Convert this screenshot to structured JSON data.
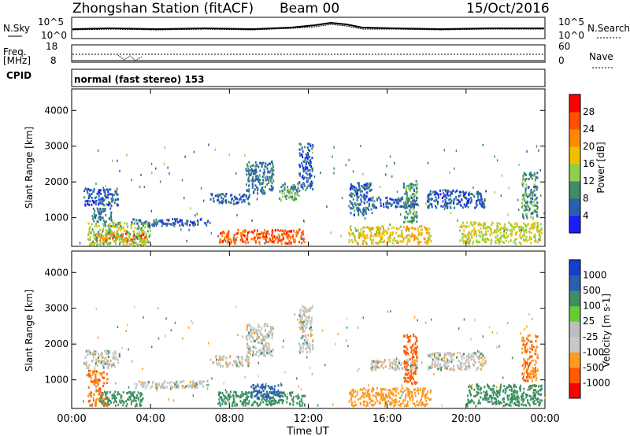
{
  "header": {
    "station": "Zhongshan Station (fitACF)",
    "beam": "Beam 00",
    "date": "15/Oct/2016"
  },
  "noise_panel": {
    "left_label": "N.Sky",
    "left_ticks": [
      "10^5",
      "10^0"
    ],
    "right_label": "N.Search",
    "right_ticks": [
      "10^5",
      "10^0"
    ]
  },
  "freq_panel": {
    "left_label_top": "Freq.",
    "left_label_unit": "[MHz]",
    "left_ticks": [
      "18",
      "8"
    ],
    "right_label": "Nave",
    "right_ticks": [
      "60",
      "0"
    ]
  },
  "cpid_panel": {
    "label": "CPID",
    "text": "normal (fast stereo) 153"
  },
  "colors": {
    "power": [
      "#1b1bff",
      "#2a5fb0",
      "#3e8c6a",
      "#8fd04a",
      "#f0c000",
      "#ff8a00",
      "#ff5000",
      "#ff0000"
    ],
    "velocity": [
      "#ff0000",
      "#ff5a00",
      "#ff9a20",
      "#c8c8c8",
      "#bebebe",
      "#66cc33",
      "#3d8f63",
      "#2a5fb0",
      "#1440d0"
    ]
  },
  "chart_data": [
    {
      "type": "heatmap",
      "name": "Power",
      "ylabel": "Slant Range [km]",
      "yticks": [
        1000,
        2000,
        3000,
        4000
      ],
      "ylim": [
        200,
        4600
      ],
      "xlim": [
        0,
        24
      ],
      "colorbar_label": "Power [dB]",
      "colorbar_ticks": [
        4,
        8,
        12,
        16,
        20,
        24,
        28
      ],
      "colorbar_range": [
        0,
        32
      ],
      "regions": [
        {
          "x": [
            0.6,
            2.4
          ],
          "y": [
            1350,
            1850
          ],
          "v": 6
        },
        {
          "x": [
            1.0,
            2.0
          ],
          "y": [
            900,
            1300
          ],
          "v": 8
        },
        {
          "x": [
            1.2,
            3.8
          ],
          "y": [
            350,
            600
          ],
          "v": 26
        },
        {
          "x": [
            0.8,
            4.0
          ],
          "y": [
            250,
            900
          ],
          "v": 14
        },
        {
          "x": [
            3.0,
            7.0
          ],
          "y": [
            800,
            1000
          ],
          "v": 6
        },
        {
          "x": [
            7.0,
            9.0
          ],
          "y": [
            1400,
            1700
          ],
          "v": 7
        },
        {
          "x": [
            8.8,
            10.2
          ],
          "y": [
            1700,
            2600
          ],
          "v": 8
        },
        {
          "x": [
            7.4,
            11.8
          ],
          "y": [
            300,
            700
          ],
          "v": 25
        },
        {
          "x": [
            10.5,
            11.5
          ],
          "y": [
            1500,
            2000
          ],
          "v": 11
        },
        {
          "x": [
            11.5,
            12.2
          ],
          "y": [
            1800,
            3100
          ],
          "v": 6
        },
        {
          "x": [
            14.0,
            15.2
          ],
          "y": [
            1100,
            2000
          ],
          "v": 7
        },
        {
          "x": [
            15.0,
            17.5
          ],
          "y": [
            1300,
            1600
          ],
          "v": 6
        },
        {
          "x": [
            14.0,
            18.2
          ],
          "y": [
            300,
            800
          ],
          "v": 18
        },
        {
          "x": [
            16.8,
            17.5
          ],
          "y": [
            900,
            2100
          ],
          "v": 11
        },
        {
          "x": [
            18.0,
            21.0
          ],
          "y": [
            1300,
            1800
          ],
          "v": 6
        },
        {
          "x": [
            19.6,
            23.8
          ],
          "y": [
            300,
            900
          ],
          "v": 16
        },
        {
          "x": [
            22.8,
            23.6
          ],
          "y": [
            1000,
            2300
          ],
          "v": 10
        }
      ]
    },
    {
      "type": "heatmap",
      "name": "Velocity",
      "ylabel": "Slant Range [km]",
      "yticks": [
        1000,
        2000,
        3000,
        4000
      ],
      "ylim": [
        200,
        4600
      ],
      "xlim": [
        0,
        24
      ],
      "xlabel": "Time UT",
      "xticks": [
        "00:00",
        "04:00",
        "08:00",
        "12:00",
        "16:00",
        "20:00",
        "00:00"
      ],
      "colorbar_label": "Velocity [m s-1]",
      "colorbar_ticks": [
        "-1000",
        "-500",
        "-100",
        "-25",
        "25",
        "100",
        "500",
        "1000"
      ],
      "regions": [
        {
          "x": [
            0.6,
            2.4
          ],
          "y": [
            1350,
            1850
          ],
          "v": 0
        },
        {
          "x": [
            0.8,
            1.8
          ],
          "y": [
            300,
            1300
          ],
          "v": -300
        },
        {
          "x": [
            1.4,
            3.6
          ],
          "y": [
            300,
            700
          ],
          "v": 200
        },
        {
          "x": [
            3.0,
            7.0
          ],
          "y": [
            800,
            1000
          ],
          "v": 0
        },
        {
          "x": [
            7.0,
            9.0
          ],
          "y": [
            1400,
            1700
          ],
          "v": 0
        },
        {
          "x": [
            8.8,
            10.2
          ],
          "y": [
            1700,
            2600
          ],
          "v": 0
        },
        {
          "x": [
            7.4,
            11.8
          ],
          "y": [
            300,
            700
          ],
          "v": 150
        },
        {
          "x": [
            9.0,
            10.6
          ],
          "y": [
            500,
            900
          ],
          "v": 600
        },
        {
          "x": [
            11.5,
            12.2
          ],
          "y": [
            1800,
            3100
          ],
          "v": 0
        },
        {
          "x": [
            14.0,
            18.2
          ],
          "y": [
            300,
            800
          ],
          "v": -200
        },
        {
          "x": [
            16.8,
            17.5
          ],
          "y": [
            900,
            2300
          ],
          "v": -400
        },
        {
          "x": [
            15.0,
            17.5
          ],
          "y": [
            1300,
            1600
          ],
          "v": 0
        },
        {
          "x": [
            18.0,
            21.0
          ],
          "y": [
            1300,
            1800
          ],
          "v": 0
        },
        {
          "x": [
            20.0,
            23.8
          ],
          "y": [
            300,
            900
          ],
          "v": 150
        },
        {
          "x": [
            22.8,
            23.6
          ],
          "y": [
            1000,
            2300
          ],
          "v": -300
        }
      ]
    }
  ]
}
